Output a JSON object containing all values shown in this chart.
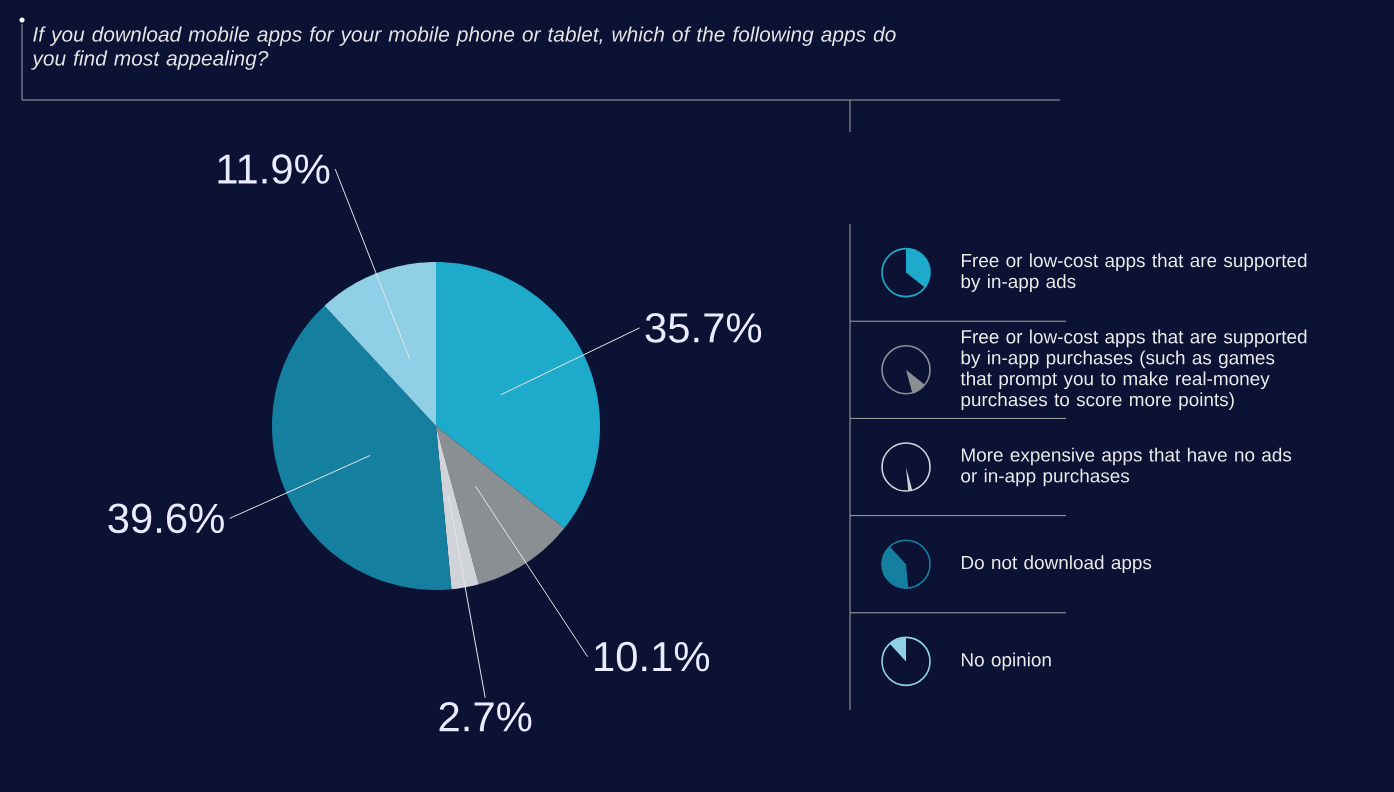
{
  "chart_data": {
    "type": "pie",
    "title": "If you download mobile apps for your mobile phone or tablet, which of the following apps do you find most appealing?",
    "categories": [
      "Free or low-cost apps that are supported by in-app ads",
      "Free or low-cost apps that are supported by in-app purchases (such as games that prompt you to make real-money purchases to score more points)",
      "More expensive apps that have no ads or in-app purchases",
      "Do not download apps",
      "No opinion"
    ],
    "values": [
      35.7,
      10.1,
      2.7,
      39.6,
      11.9
    ],
    "value_labels": [
      "35.7%",
      "10.1%",
      "2.7%",
      "39.6%",
      "11.9%"
    ],
    "colors": [
      "#1eaacb",
      "#8a8f94",
      "#d0d4d8",
      "#147f9f",
      "#8fd0e6"
    ],
    "legend": "right"
  }
}
